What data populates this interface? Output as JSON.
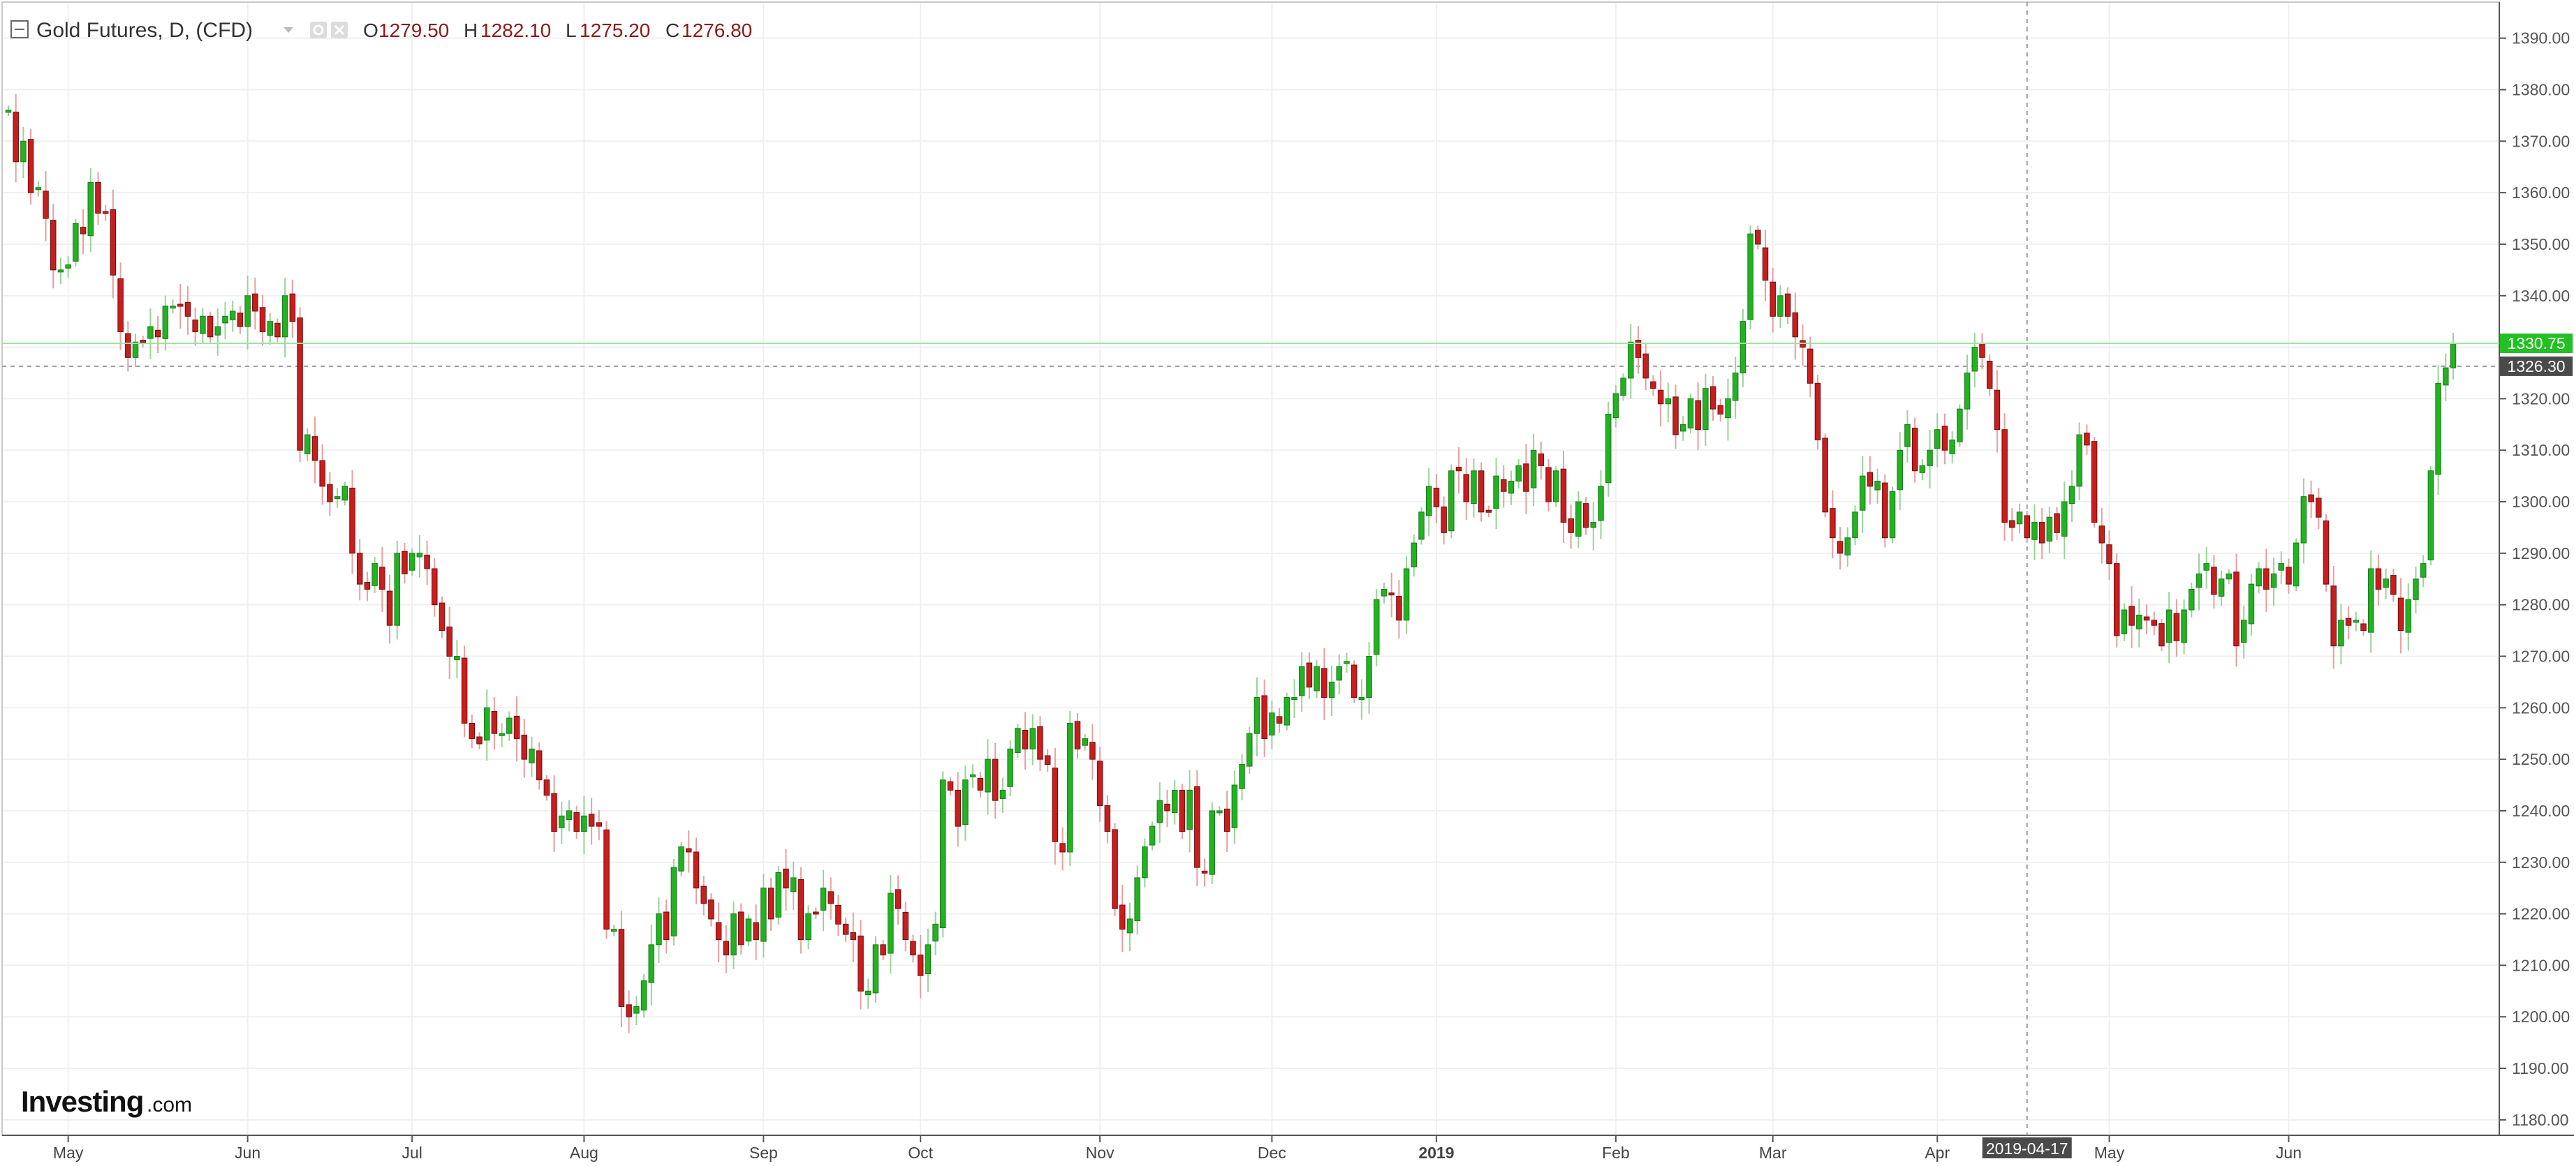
{
  "legend": {
    "title": "Gold Futures, D, (CFD)",
    "open_label": "O",
    "open_value": "1279.50",
    "high_label": "H",
    "high_value": "1282.10",
    "low_label": "L",
    "low_value": "1275.20",
    "close_label": "C",
    "close_value": "1276.80"
  },
  "logo": {
    "main": "Investing",
    "sub": ".com"
  },
  "colors": {
    "up": "#22b222",
    "down": "#c81e1e",
    "up_border": "#1a7a1a",
    "down_border": "#6e0f0f",
    "price_line": "#9be59b",
    "price_badge": "#22c022",
    "crosshair_badge": "#4a4a4a"
  },
  "icons": [
    "collapse-icon",
    "dropdown-icon",
    "settings-icon",
    "close-icon"
  ],
  "chart_data": {
    "type": "candlestick",
    "title": "Gold Futures, D, (CFD)",
    "ylim": [
      1177,
      1397
    ],
    "y_ticks": [
      1180,
      1190,
      1200,
      1210,
      1220,
      1230,
      1240,
      1250,
      1260,
      1270,
      1280,
      1290,
      1300,
      1310,
      1320,
      1330,
      1340,
      1350,
      1360,
      1370,
      1380,
      1390
    ],
    "y_tick_labels": [
      "1180.00",
      "1190.00",
      "1200.00",
      "1210.00",
      "1220.00",
      "1230.00",
      "1240.00",
      "1250.00",
      "1260.00",
      "1270.00",
      "1280.00",
      "1290.00",
      "1300.00",
      "1310.00",
      "1320.00",
      "1330.00",
      "1340.00",
      "1350.00",
      "1360.00",
      "1370.00",
      "1380.00",
      "1390.00"
    ],
    "x_labels": [
      "May",
      "Jun",
      "Jul",
      "Aug",
      "Sep",
      "Oct",
      "Nov",
      "Dec",
      "2019",
      "Feb",
      "Mar",
      "Apr",
      "May",
      "Jun"
    ],
    "x_label_index": [
      8,
      32,
      54,
      77,
      101,
      122,
      146,
      169,
      191,
      215,
      236,
      258,
      281,
      305
    ],
    "current_price": 1330.75,
    "current_price_label": "1330.75",
    "crosshair_price": 1326.3,
    "crosshair_price_label": "1326.30",
    "crosshair_date": "2019-04-17",
    "crosshair_index": 270,
    "closes": [
      1376,
      1366,
      1370,
      1360,
      1361,
      1355,
      1345,
      1345,
      1346,
      1354,
      1352,
      1362,
      1356,
      1356,
      1344,
      1333,
      1328,
      1331,
      1331,
      1334,
      1332,
      1338,
      1338,
      1338,
      1336,
      1333,
      1336,
      1332,
      1334,
      1336,
      1337,
      1334,
      1340,
      1337,
      1333,
      1335,
      1332,
      1340,
      1335,
      1310,
      1313,
      1308,
      1303,
      1300,
      1301,
      1303,
      1290,
      1284,
      1283,
      1288,
      1283,
      1276,
      1290,
      1286,
      1290,
      1290,
      1287,
      1280,
      1275,
      1270,
      1270,
      1257,
      1254,
      1253,
      1260,
      1255,
      1255,
      1258,
      1254,
      1250,
      1252,
      1246,
      1243,
      1236,
      1239,
      1240,
      1236,
      1239,
      1237,
      1237,
      1217,
      1217,
      1202,
      1200,
      1202,
      1207,
      1214,
      1220,
      1215,
      1229,
      1233,
      1232,
      1225,
      1222,
      1219,
      1215,
      1212,
      1220,
      1214,
      1219,
      1215,
      1225,
      1219,
      1228,
      1225,
      1227,
      1215,
      1220,
      1220,
      1225,
      1222,
      1218,
      1216,
      1215,
      1205,
      1205,
      1214,
      1212,
      1224,
      1221,
      1215,
      1212,
      1208,
      1214,
      1218,
      1246,
      1244,
      1237,
      1246,
      1247,
      1244,
      1250,
      1242,
      1244,
      1252,
      1256,
      1252,
      1256,
      1250,
      1249,
      1234,
      1232,
      1257,
      1252,
      1254,
      1250,
      1241,
      1236,
      1221,
      1217,
      1219,
      1227,
      1233,
      1237,
      1242,
      1240,
      1244,
      1236,
      1244,
      1229,
      1228,
      1240,
      1240,
      1236,
      1245,
      1249,
      1255,
      1262,
      1254,
      1259,
      1257,
      1262,
      1262,
      1268,
      1264,
      1268,
      1262,
      1265,
      1268,
      1269,
      1262,
      1262,
      1270,
      1281,
      1283,
      1282,
      1277,
      1287,
      1292,
      1298,
      1303,
      1299,
      1294,
      1306,
      1306,
      1300,
      1306,
      1298,
      1298,
      1305,
      1302,
      1304,
      1307,
      1302,
      1310,
      1307,
      1300,
      1306,
      1296,
      1294,
      1300,
      1295,
      1296,
      1303,
      1317,
      1321,
      1324,
      1331,
      1328,
      1324,
      1322,
      1319,
      1320,
      1313,
      1315,
      1320,
      1314,
      1322,
      1318,
      1317,
      1320,
      1325,
      1335,
      1352,
      1350,
      1343,
      1336,
      1340,
      1336,
      1332,
      1330,
      1323,
      1312,
      1298,
      1293,
      1290,
      1293,
      1298,
      1305,
      1303,
      1304,
      1293,
      1302,
      1310,
      1315,
      1306,
      1307,
      1310,
      1314,
      1310,
      1312,
      1318,
      1325,
      1330,
      1328,
      1322,
      1314,
      1296,
      1295,
      1298,
      1293,
      1296,
      1292,
      1297,
      1294,
      1300,
      1303,
      1313,
      1311,
      1296,
      1292,
      1288,
      1274,
      1279,
      1276,
      1278,
      1277,
      1276,
      1272,
      1279,
      1273,
      1279,
      1283,
      1286,
      1288,
      1282,
      1285,
      1286,
      1272,
      1277,
      1284,
      1287,
      1283,
      1286,
      1288,
      1284,
      1292,
      1301,
      1300,
      1297,
      1284,
      1272,
      1277,
      1276,
      1277,
      1275,
      1287,
      1283,
      1285,
      1282,
      1275,
      1281,
      1285,
      1288,
      1306,
      1323,
      1326,
      1330.75
    ]
  }
}
